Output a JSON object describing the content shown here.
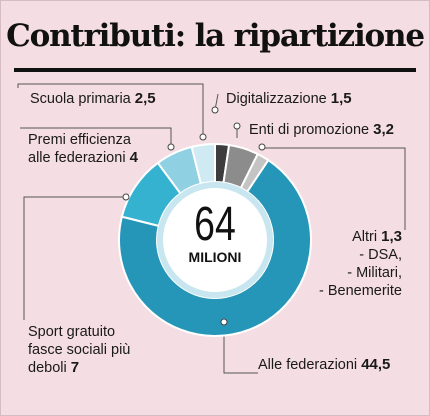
{
  "title": "Contributi: la ripartizione",
  "center": {
    "value": "64",
    "unit": "MILIONI"
  },
  "chart_data": {
    "type": "pie",
    "style": "donut",
    "total": 64,
    "unit": "milioni",
    "title": "Contributi: la ripartizione",
    "slices": [
      {
        "label": "Digitalizzazione",
        "value": 1.5,
        "value_text": "1,5",
        "color": "#3d3d3d"
      },
      {
        "label": "Enti di promozione",
        "value": 3.2,
        "value_text": "3,2",
        "color": "#8c8c8c"
      },
      {
        "label": "Altri",
        "value": 1.3,
        "value_text": "1,3",
        "sub_items": [
          "- DSA,",
          "- Militari,",
          "- Benemerite"
        ],
        "color": "#c4c4c4"
      },
      {
        "label": "Alle federazioni",
        "value": 44.5,
        "value_text": "44,5",
        "color": "#2596b8"
      },
      {
        "label": "Sport gratuito fasce sociali più deboli",
        "label_lines": [
          "Sport gratuito",
          "fasce sociali più",
          "deboli"
        ],
        "value": 7,
        "value_text": "7",
        "color": "#34b2d0"
      },
      {
        "label": "Premi efficienza alle federazioni",
        "label_lines": [
          "Premi efficienza",
          "alle federazioni"
        ],
        "value": 4,
        "value_text": "4",
        "color": "#8fd0e2"
      },
      {
        "label": "Scuola primaria",
        "value": 2.5,
        "value_text": "2,5",
        "color": "#cfeaf2"
      }
    ]
  }
}
